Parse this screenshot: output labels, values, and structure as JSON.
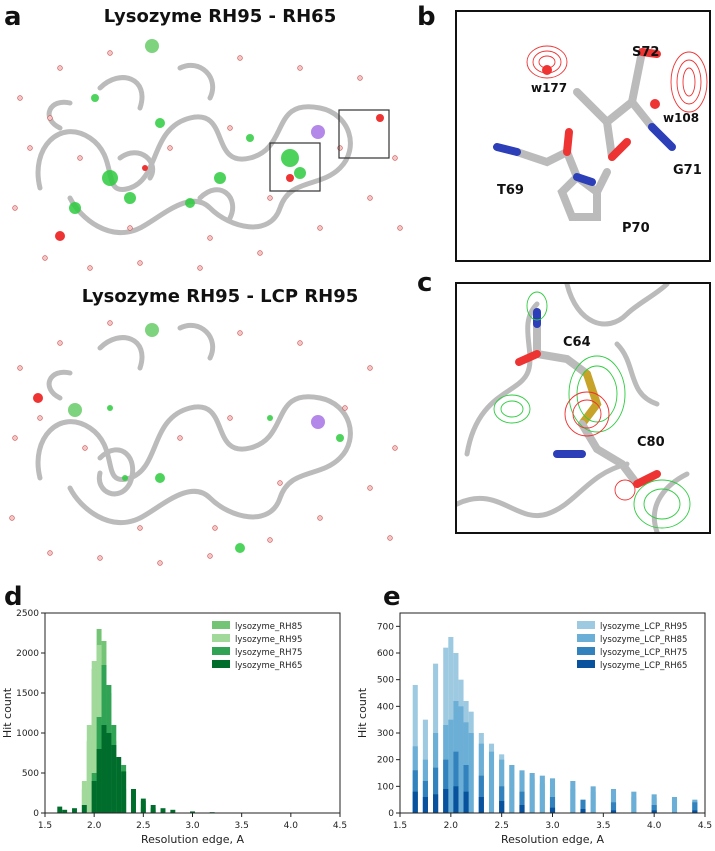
{
  "panels": {
    "a": {
      "label": "a",
      "title_top": "Lysozyme RH95 - RH65",
      "title_bottom": "Lysozyme RH95 - LCP RH95"
    },
    "b": {
      "label": "b",
      "residues": [
        "S72",
        "w177",
        "w108",
        "G71",
        "T69",
        "P70"
      ]
    },
    "c": {
      "label": "c",
      "residues": [
        "C64",
        "C80"
      ]
    },
    "d": {
      "label": "d"
    },
    "e": {
      "label": "e"
    }
  },
  "chart_data": [
    {
      "type": "bar",
      "panel": "d",
      "xlabel": "Resolution edge, A",
      "ylabel": "Hit count",
      "xlim": [
        1.5,
        4.5
      ],
      "ylim": [
        0,
        2500
      ],
      "xticks": [
        "1.5",
        "2.0",
        "2.5",
        "3.0",
        "3.5",
        "4.0",
        "4.5"
      ],
      "yticks": [
        "0",
        "500",
        "1000",
        "1500",
        "2000",
        "2500"
      ],
      "legend_position": "top-right",
      "series": [
        {
          "name": "lysozyme_RH85",
          "color": "#74c476",
          "x": [
            1.9,
            1.95,
            2.0,
            2.05,
            2.1,
            2.15,
            2.2,
            2.25,
            2.3,
            2.4,
            2.5,
            2.6
          ],
          "values": [
            300,
            900,
            1800,
            2300,
            2150,
            1500,
            900,
            500,
            300,
            150,
            70,
            30
          ]
        },
        {
          "name": "lysozyme_RH95",
          "color": "#a1d99b",
          "x": [
            1.9,
            1.95,
            2.0,
            2.05,
            2.1,
            2.15,
            2.2,
            2.3,
            2.4,
            2.5
          ],
          "values": [
            400,
            1100,
            1900,
            2100,
            1700,
            1000,
            600,
            300,
            120,
            60
          ]
        },
        {
          "name": "lysozyme_RH75",
          "color": "#31a354",
          "x": [
            2.0,
            2.05,
            2.1,
            2.15,
            2.2,
            2.3,
            2.4,
            2.5,
            2.6
          ],
          "values": [
            500,
            1200,
            1850,
            1600,
            1100,
            600,
            300,
            150,
            60
          ]
        },
        {
          "name": "lysozyme_RH65",
          "color": "#006d2c",
          "x": [
            1.65,
            1.7,
            1.8,
            1.9,
            2.0,
            2.05,
            2.1,
            2.15,
            2.2,
            2.25,
            2.3,
            2.4,
            2.5,
            2.6,
            2.7,
            2.8,
            3.0,
            3.2
          ],
          "values": [
            80,
            40,
            60,
            100,
            400,
            800,
            1100,
            1000,
            850,
            700,
            520,
            300,
            180,
            100,
            60,
            40,
            20,
            10
          ]
        }
      ]
    },
    {
      "type": "bar",
      "panel": "e",
      "xlabel": "Resolution edge, A",
      "ylabel": "Hit count",
      "xlim": [
        1.5,
        4.5
      ],
      "ylim": [
        0,
        750
      ],
      "xticks": [
        "1.5",
        "2.0",
        "2.5",
        "3.0",
        "3.5",
        "4.0",
        "4.5"
      ],
      "yticks": [
        "0",
        "100",
        "200",
        "300",
        "400",
        "500",
        "600",
        "700"
      ],
      "legend_position": "top-right",
      "series": [
        {
          "name": "lysozyme_LCP_RH95",
          "color": "#9ecae1",
          "x": [
            1.65,
            1.75,
            1.85,
            1.95,
            2.0,
            2.05,
            2.1,
            2.15,
            2.2,
            2.3,
            2.4,
            2.5,
            2.6,
            2.7,
            2.8,
            2.9,
            3.0,
            3.2,
            3.4,
            3.6,
            3.8,
            4.0,
            4.2,
            4.4
          ],
          "values": [
            480,
            350,
            560,
            620,
            660,
            600,
            500,
            420,
            380,
            300,
            260,
            220,
            180,
            150,
            130,
            110,
            100,
            90,
            80,
            70,
            60,
            55,
            50,
            45
          ]
        },
        {
          "name": "lysozyme_LCP_RH85",
          "color": "#6baed6",
          "x": [
            1.65,
            1.75,
            1.85,
            1.95,
            2.0,
            2.05,
            2.1,
            2.15,
            2.2,
            2.3,
            2.4,
            2.5,
            2.6,
            2.7,
            2.8,
            2.9,
            3.0,
            3.2,
            3.4,
            3.6,
            3.8,
            4.0,
            4.2,
            4.4
          ],
          "values": [
            250,
            200,
            300,
            330,
            350,
            420,
            400,
            340,
            300,
            260,
            230,
            200,
            180,
            160,
            150,
            140,
            130,
            120,
            100,
            90,
            80,
            70,
            60,
            50
          ]
        },
        {
          "name": "lysozyme_LCP_RH75",
          "color": "#3182bd",
          "x": [
            1.65,
            1.75,
            1.85,
            1.95,
            2.05,
            2.15,
            2.3,
            2.5,
            2.7,
            3.0,
            3.3,
            3.6,
            4.0,
            4.4
          ],
          "values": [
            160,
            120,
            170,
            200,
            230,
            180,
            140,
            100,
            80,
            60,
            50,
            40,
            30,
            40
          ]
        },
        {
          "name": "lysozyme_LCP_RH65",
          "color": "#08519c",
          "x": [
            1.65,
            1.75,
            1.85,
            1.95,
            2.05,
            2.15,
            2.3,
            2.5,
            2.7,
            3.0,
            3.3,
            3.6,
            4.0,
            4.4
          ],
          "values": [
            80,
            60,
            70,
            90,
            100,
            80,
            60,
            45,
            30,
            20,
            15,
            10,
            10,
            10
          ]
        }
      ]
    }
  ]
}
